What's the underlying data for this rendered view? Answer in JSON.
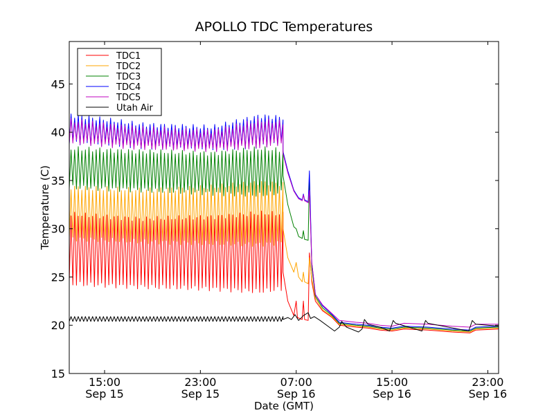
{
  "chart_data": {
    "type": "line",
    "title": "APOLLO TDC Temperatures",
    "xlabel": "Date (GMT)",
    "ylabel": "Temperature (C)",
    "x_units": "hours since Sep 15 00:00 GMT",
    "xlim": [
      12.05,
      47.9
    ],
    "ylim": [
      15,
      49.4
    ],
    "grid": false,
    "legend_position": "top-left",
    "y_ticks": [
      {
        "value": 15,
        "label": "15"
      },
      {
        "value": 20,
        "label": "20"
      },
      {
        "value": 25,
        "label": "25"
      },
      {
        "value": 30,
        "label": "30"
      },
      {
        "value": 35,
        "label": "35"
      },
      {
        "value": 40,
        "label": "40"
      },
      {
        "value": 45,
        "label": "45"
      }
    ],
    "x_ticks": [
      {
        "value": 15,
        "time": "15:00",
        "date": "Sep 15"
      },
      {
        "value": 23,
        "time": "23:00",
        "date": "Sep 15"
      },
      {
        "value": 31,
        "time": "07:00",
        "date": "Sep 16"
      },
      {
        "value": 39,
        "time": "15:00",
        "date": "Sep 16"
      },
      {
        "value": 47,
        "time": "23:00",
        "date": "Sep 16"
      }
    ],
    "oscillation": {
      "start": 12.05,
      "end": 29.9,
      "period_hours": 0.3
    },
    "series": [
      {
        "name": "TDC1",
        "color": "#ff0000",
        "osc_low": [
          [
            12.05,
            24.3
          ],
          [
            18,
            24.0
          ],
          [
            24,
            23.8
          ],
          [
            28,
            23.5
          ],
          [
            29.9,
            23.8
          ]
        ],
        "osc_high": [
          [
            12.05,
            31.5
          ],
          [
            18,
            31.0
          ],
          [
            24,
            31.2
          ],
          [
            28,
            31.6
          ],
          [
            29.9,
            31.5
          ]
        ],
        "tail": [
          [
            29.9,
            25.5
          ],
          [
            30.3,
            22.5
          ],
          [
            30.8,
            21.0
          ],
          [
            31.0,
            22.5
          ],
          [
            31.1,
            20.8
          ],
          [
            31.5,
            20.6
          ],
          [
            31.6,
            22.5
          ],
          [
            31.7,
            20.6
          ],
          [
            32.0,
            20.5
          ],
          [
            32.1,
            27.5
          ],
          [
            32.3,
            24.5
          ],
          [
            32.6,
            22.5
          ],
          [
            33.2,
            21.5
          ],
          [
            34.0,
            20.8
          ],
          [
            34.6,
            20.0
          ],
          [
            36.0,
            19.8
          ],
          [
            37.0,
            19.7
          ],
          [
            38.0,
            19.5
          ],
          [
            39.0,
            19.4
          ],
          [
            40.0,
            19.6
          ],
          [
            42.0,
            19.5
          ],
          [
            44.0,
            19.3
          ],
          [
            45.5,
            19.2
          ],
          [
            46.0,
            19.5
          ],
          [
            47.9,
            19.6
          ]
        ]
      },
      {
        "name": "TDC2",
        "color": "#ffa500",
        "osc_low": [
          [
            12.05,
            29.0
          ],
          [
            18,
            28.7
          ],
          [
            24,
            28.5
          ],
          [
            28,
            28.4
          ],
          [
            29.9,
            28.6
          ]
        ],
        "osc_high": [
          [
            12.05,
            34.3
          ],
          [
            18,
            34.0
          ],
          [
            24,
            34.3
          ],
          [
            28,
            34.8
          ],
          [
            29.9,
            34.6
          ]
        ],
        "tail": [
          [
            29.9,
            30.0
          ],
          [
            30.3,
            27.0
          ],
          [
            30.8,
            25.5
          ],
          [
            31.0,
            26.5
          ],
          [
            31.2,
            25.0
          ],
          [
            31.5,
            24.5
          ],
          [
            31.6,
            25.5
          ],
          [
            31.7,
            24.5
          ],
          [
            32.0,
            24.3
          ],
          [
            32.1,
            27.0
          ],
          [
            32.3,
            24.8
          ],
          [
            32.6,
            22.8
          ],
          [
            33.2,
            21.6
          ],
          [
            34.0,
            20.9
          ],
          [
            34.6,
            20.1
          ],
          [
            36.0,
            19.9
          ],
          [
            37.0,
            19.8
          ],
          [
            38.0,
            19.6
          ],
          [
            39.0,
            19.5
          ],
          [
            40.0,
            19.7
          ],
          [
            42.0,
            19.6
          ],
          [
            44.0,
            19.4
          ],
          [
            45.5,
            19.3
          ],
          [
            46.0,
            19.6
          ],
          [
            47.9,
            19.7
          ]
        ]
      },
      {
        "name": "TDC3",
        "color": "#008000",
        "osc_low": [
          [
            12.05,
            34.3
          ],
          [
            18,
            34.0
          ],
          [
            24,
            33.7
          ],
          [
            28,
            33.5
          ],
          [
            29.9,
            33.8
          ]
        ],
        "osc_high": [
          [
            12.05,
            38.3
          ],
          [
            18,
            38.0
          ],
          [
            24,
            37.8
          ],
          [
            28,
            38.3
          ],
          [
            29.9,
            38.1
          ]
        ],
        "tail": [
          [
            29.9,
            35.5
          ],
          [
            30.3,
            32.5
          ],
          [
            30.8,
            30.2
          ],
          [
            31.0,
            30.0
          ],
          [
            31.2,
            29.2
          ],
          [
            31.5,
            29.0
          ],
          [
            31.6,
            29.8
          ],
          [
            31.7,
            28.9
          ],
          [
            32.0,
            28.8
          ],
          [
            32.1,
            35.5
          ],
          [
            32.3,
            26.0
          ],
          [
            32.6,
            23.0
          ],
          [
            33.2,
            21.8
          ],
          [
            34.0,
            21.0
          ],
          [
            34.6,
            20.2
          ],
          [
            36.0,
            20.0
          ],
          [
            37.0,
            19.9
          ],
          [
            38.0,
            19.7
          ],
          [
            39.0,
            19.6
          ],
          [
            40.0,
            19.8
          ],
          [
            42.0,
            19.7
          ],
          [
            44.0,
            19.5
          ],
          [
            45.5,
            19.4
          ],
          [
            46.0,
            19.7
          ],
          [
            47.9,
            19.8
          ]
        ]
      },
      {
        "name": "TDC4",
        "color": "#0000ff",
        "osc_low": [
          [
            12.05,
            39.0
          ],
          [
            18,
            38.5
          ],
          [
            24,
            38.3
          ],
          [
            28,
            38.6
          ],
          [
            29.9,
            39.0
          ]
        ],
        "osc_high": [
          [
            12.05,
            41.8
          ],
          [
            18,
            40.8
          ],
          [
            24,
            40.5
          ],
          [
            28,
            41.7
          ],
          [
            29.9,
            41.5
          ]
        ],
        "tail": [
          [
            29.9,
            38.0
          ],
          [
            30.3,
            36.0
          ],
          [
            30.8,
            34.0
          ],
          [
            31.0,
            33.6
          ],
          [
            31.2,
            33.2
          ],
          [
            31.5,
            33.0
          ],
          [
            31.6,
            33.6
          ],
          [
            31.7,
            33.0
          ],
          [
            32.0,
            32.8
          ],
          [
            32.1,
            36.0
          ],
          [
            32.3,
            26.5
          ],
          [
            32.6,
            23.2
          ],
          [
            33.2,
            22.0
          ],
          [
            34.0,
            21.1
          ],
          [
            34.6,
            20.3
          ],
          [
            36.0,
            20.1
          ],
          [
            37.0,
            20.0
          ],
          [
            38.0,
            19.8
          ],
          [
            39.0,
            19.7
          ],
          [
            40.0,
            19.9
          ],
          [
            42.0,
            19.8
          ],
          [
            44.0,
            19.6
          ],
          [
            45.5,
            19.5
          ],
          [
            46.0,
            19.8
          ],
          [
            47.9,
            19.9
          ]
        ]
      },
      {
        "name": "TDC5",
        "color": "#bf00bf",
        "osc_low": [
          [
            12.05,
            39.0
          ],
          [
            18,
            38.4
          ],
          [
            24,
            38.2
          ],
          [
            28,
            38.5
          ],
          [
            29.9,
            38.9
          ]
        ],
        "osc_high": [
          [
            12.05,
            41.2
          ],
          [
            18,
            40.4
          ],
          [
            24,
            40.1
          ],
          [
            28,
            41.2
          ],
          [
            29.9,
            41.0
          ]
        ],
        "tail": [
          [
            29.9,
            37.8
          ],
          [
            30.3,
            35.8
          ],
          [
            30.8,
            33.9
          ],
          [
            31.0,
            33.5
          ],
          [
            31.2,
            33.1
          ],
          [
            31.5,
            32.9
          ],
          [
            31.6,
            33.5
          ],
          [
            31.7,
            32.9
          ],
          [
            32.0,
            32.7
          ],
          [
            32.1,
            34.0
          ],
          [
            32.3,
            26.5
          ],
          [
            32.6,
            23.2
          ],
          [
            33.2,
            22.1
          ],
          [
            34.0,
            21.2
          ],
          [
            34.6,
            20.5
          ],
          [
            36.0,
            20.3
          ],
          [
            37.0,
            20.2
          ],
          [
            38.0,
            20.0
          ],
          [
            39.0,
            19.9
          ],
          [
            40.0,
            20.2
          ],
          [
            42.0,
            20.1
          ],
          [
            44.0,
            19.9
          ],
          [
            45.5,
            19.8
          ],
          [
            46.0,
            20.1
          ],
          [
            47.9,
            20.1
          ]
        ]
      },
      {
        "name": "Utah Air",
        "color": "#000000",
        "osc_low": [
          [
            12.05,
            20.4
          ],
          [
            29.9,
            20.4
          ]
        ],
        "osc_high": [
          [
            12.05,
            20.9
          ],
          [
            29.9,
            20.9
          ]
        ],
        "tail": [
          [
            29.9,
            20.6
          ],
          [
            30.3,
            20.8
          ],
          [
            30.6,
            20.6
          ],
          [
            30.9,
            21.1
          ],
          [
            31.2,
            20.5
          ],
          [
            31.6,
            21.0
          ],
          [
            32.0,
            21.3
          ],
          [
            32.2,
            20.7
          ],
          [
            32.5,
            20.9
          ],
          [
            33.0,
            20.5
          ],
          [
            34.2,
            19.4
          ],
          [
            34.6,
            19.8
          ],
          [
            34.8,
            20.4
          ],
          [
            35.2,
            19.8
          ],
          [
            36.2,
            19.3
          ],
          [
            36.5,
            19.6
          ],
          [
            36.7,
            20.6
          ],
          [
            37.0,
            20.1
          ],
          [
            38.0,
            19.8
          ],
          [
            38.8,
            19.4
          ],
          [
            39.1,
            20.5
          ],
          [
            39.3,
            20.2
          ],
          [
            41.5,
            19.4
          ],
          [
            41.8,
            20.5
          ],
          [
            42.0,
            20.2
          ],
          [
            45.4,
            19.4
          ],
          [
            45.7,
            20.5
          ],
          [
            46.0,
            20.1
          ],
          [
            47.9,
            19.9
          ]
        ]
      }
    ]
  }
}
